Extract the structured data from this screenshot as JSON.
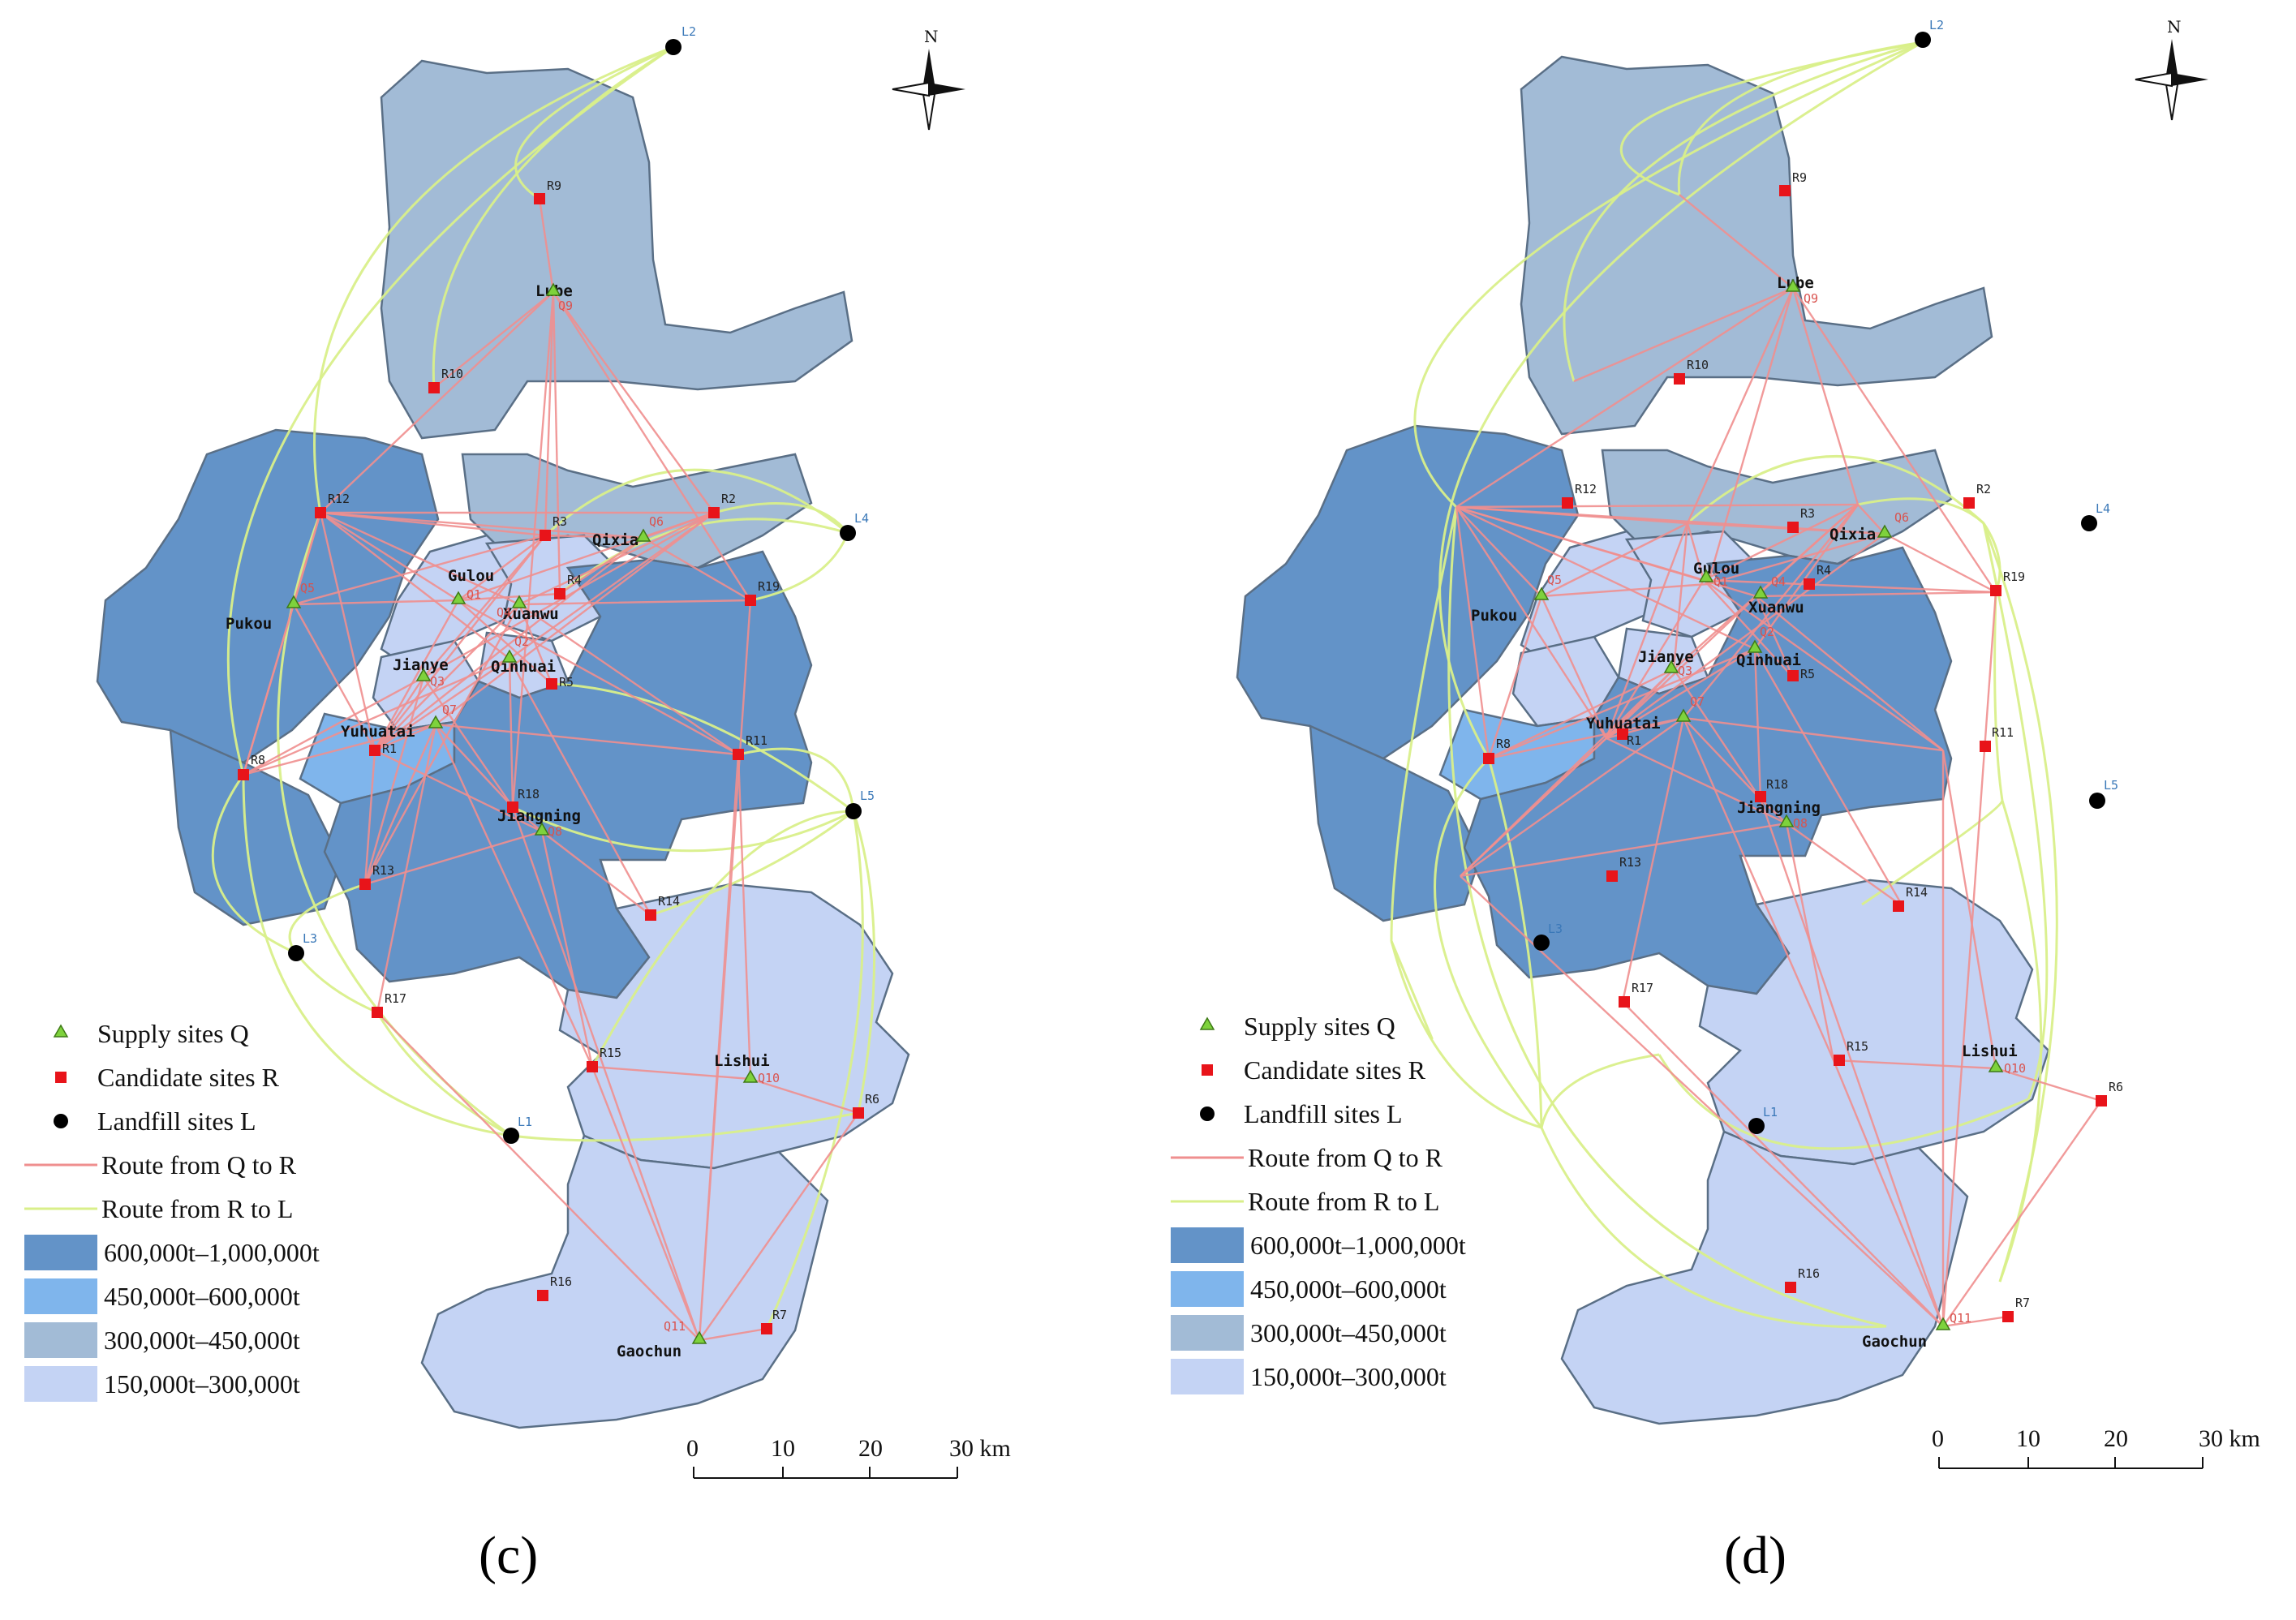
{
  "panels": [
    {
      "id": "c",
      "caption": "(c)"
    },
    {
      "id": "d",
      "caption": "(d)"
    }
  ],
  "compass_label": "N",
  "places": [
    "Lube",
    "Qixia",
    "Gulou",
    "Xuanwu",
    "Pukou",
    "Qinhuai",
    "Jianye",
    "Yuhuatai",
    "Jiangning",
    "Lishui",
    "Gaochun"
  ],
  "sites": {
    "supply": [
      "Q1",
      "Q2",
      "Q3",
      "Q4",
      "Q5",
      "Q6",
      "Q7",
      "Q8",
      "Q9",
      "Q10",
      "Q11"
    ],
    "candidate": [
      "R1",
      "R2",
      "R3",
      "R4",
      "R5",
      "R6",
      "R7",
      "R8",
      "R9",
      "R10",
      "R11",
      "R12",
      "R13",
      "R14",
      "R15",
      "R16",
      "R17",
      "R18",
      "R19"
    ],
    "landfill": [
      "L1",
      "L2",
      "L3",
      "L4",
      "L5"
    ]
  },
  "legend": {
    "supply": "Supply sites Q",
    "candidate": "Candidate sites R",
    "landfill": "Landfill sites L",
    "route_qr": "Route from Q to R",
    "route_rl": "Route from R to L",
    "classes": [
      {
        "label": "600,000t–1,000,000t",
        "color": "#6393c8"
      },
      {
        "label": "450,000t–600,000t",
        "color": "#7fb5ec"
      },
      {
        "label": "300,000t–450,000t",
        "color": "#a2bbd6"
      },
      {
        "label": "150,000t–300,000t",
        "color": "#c4d3f4"
      }
    ]
  },
  "scale_bar": {
    "ticks": [
      "0",
      "10",
      "20",
      "30 km"
    ]
  },
  "colors": {
    "supply": "#7ed23c",
    "candidate": "#e8141a",
    "landfill": "#000000",
    "route_qr": "#ef8f8f",
    "route_rl": "#d9ef8a"
  }
}
